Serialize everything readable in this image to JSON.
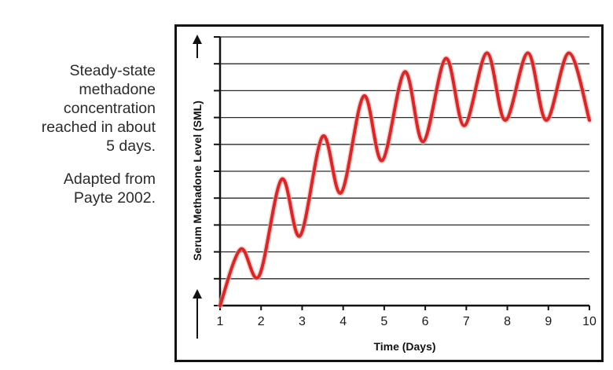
{
  "caption": {
    "paragraph1": [
      "Steady-state",
      "methadone",
      "concentration",
      "reached in about",
      "5 days."
    ],
    "paragraph2": [
      "Adapted from",
      "Payte 2002."
    ]
  },
  "chart_data": {
    "type": "line",
    "title": "",
    "xlabel": "Time (Days)",
    "ylabel": "Serum Methadone Level (SML)",
    "xlim": [
      1,
      10
    ],
    "ylim": [
      0,
      10
    ],
    "x_ticks": [
      1,
      2,
      3,
      4,
      5,
      6,
      7,
      8,
      9,
      10
    ],
    "x_tick_labels": [
      "1",
      "2",
      "3",
      "4",
      "5",
      "6",
      "7",
      "8",
      "9",
      "10"
    ],
    "y_ticks_unlabeled": [
      1,
      2,
      3,
      4,
      5,
      6,
      7,
      8,
      9,
      10
    ],
    "grid": "horizontal",
    "line_color": "#e02424",
    "series": [
      {
        "name": "",
        "points": [
          {
            "x": 1.0,
            "y": 0.0
          },
          {
            "x": 1.5,
            "y": 2.1
          },
          {
            "x": 1.95,
            "y": 1.1
          },
          {
            "x": 2.5,
            "y": 4.7
          },
          {
            "x": 2.95,
            "y": 2.6
          },
          {
            "x": 3.5,
            "y": 6.3
          },
          {
            "x": 3.95,
            "y": 4.2
          },
          {
            "x": 4.5,
            "y": 7.8
          },
          {
            "x": 4.95,
            "y": 5.4
          },
          {
            "x": 5.5,
            "y": 8.7
          },
          {
            "x": 5.95,
            "y": 6.1
          },
          {
            "x": 6.5,
            "y": 9.2
          },
          {
            "x": 6.95,
            "y": 6.7
          },
          {
            "x": 7.5,
            "y": 9.4
          },
          {
            "x": 7.95,
            "y": 6.9
          },
          {
            "x": 8.5,
            "y": 9.4
          },
          {
            "x": 8.95,
            "y": 6.9
          },
          {
            "x": 9.5,
            "y": 9.4
          },
          {
            "x": 10.0,
            "y": 6.9
          }
        ]
      }
    ]
  }
}
